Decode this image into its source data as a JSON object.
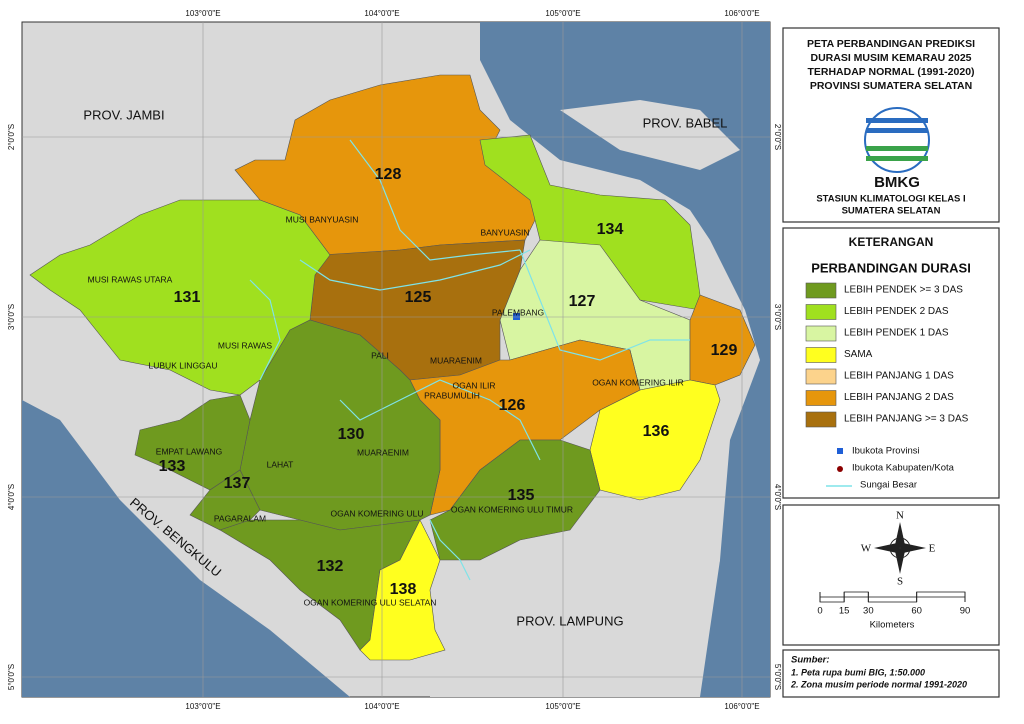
{
  "map_frame": {
    "lon_ticks": [
      "103°0'0\"E",
      "104°0'0\"E",
      "105°0'0\"E",
      "106°0'0\"E"
    ],
    "lat_ticks": [
      "2°0'0\"S",
      "3°0'0\"S",
      "4°0'0\"S",
      "5°0'0\"S"
    ]
  },
  "title": [
    "PETA PERBANDINGAN PREDIKSI",
    "DURASI MUSIM KEMARAU 2025",
    "TERHADAP NORMAL (1991-2020)",
    "PROVINSI SUMATERA SELATAN"
  ],
  "org": "BMKG",
  "station": [
    "STASIUN KLIMATOLOGI KELAS I",
    "SUMATERA SELATAN"
  ],
  "legend": {
    "title": "KETERANGAN",
    "subtitle": "PERBANDINGAN DURASI",
    "items": [
      {
        "label": "LEBIH PENDEK >= 3 DAS",
        "color": "#6f9a1f"
      },
      {
        "label": "LEBIH PENDEK 2 DAS",
        "color": "#a0e01f"
      },
      {
        "label": "LEBIH PENDEK 1 DAS",
        "color": "#d8f5a2"
      },
      {
        "label": "SAMA",
        "color": "#ffff1f"
      },
      {
        "label": "LEBIH PANJANG 1 DAS",
        "color": "#fcd38c"
      },
      {
        "label": "LEBIH PANJANG 2 DAS",
        "color": "#e6960c"
      },
      {
        "label": "LEBIH PANJANG >= 3 DAS",
        "color": "#a8700e"
      }
    ],
    "symbols": [
      "Ibukota Provinsi",
      "Ibukota Kabupaten/Kota",
      "Sungai Besar"
    ]
  },
  "regions": [
    {
      "label": "128",
      "color": "#e6960c"
    },
    {
      "label": "134",
      "color": "#a0e01f"
    },
    {
      "label": "127",
      "color": "#d8f5a2"
    },
    {
      "label": "129",
      "color": "#e6960c"
    },
    {
      "label": "136",
      "color": "#ffff1f"
    },
    {
      "label": "125",
      "color": "#a8700e"
    },
    {
      "label": "131",
      "color": "#a0e01f"
    },
    {
      "label": "126",
      "color": "#e6960c"
    },
    {
      "label": "130",
      "color": "#6f9a1f"
    },
    {
      "label": "135",
      "color": "#6f9a1f"
    },
    {
      "label": "133",
      "color": "#6f9a1f"
    },
    {
      "label": "137",
      "color": "#6f9a1f"
    },
    {
      "label": "132",
      "color": "#6f9a1f"
    },
    {
      "label": "138",
      "color": "#ffff1f"
    }
  ],
  "place_labels": [
    "MUSI BANYUASIN",
    "BANYUASIN",
    "MUSI RAWAS UTARA",
    "MUSI RAWAS",
    "LUBUK LINGGAU",
    "PALEMBANG",
    "PALI",
    "MUARAENIM",
    "PRABUMULIH",
    "OGAN ILIR",
    "OGAN KOMERING ILIR",
    "EMPAT LAWANG",
    "LAHAT",
    "MUARAENIM",
    "PAGARALAM",
    "OGAN KOMERING ULU",
    "OGAN KOMERING ULU TIMUR",
    "OGAN KOMERING ULU SELATAN"
  ],
  "province_labels": [
    "PROV. JAMBI",
    "PROV. BABEL",
    "PROV. BENGKULU",
    "PROV. LAMPUNG"
  ],
  "compass": {
    "n": "N",
    "e": "E",
    "s": "S",
    "w": "W"
  },
  "scale": {
    "ticks": [
      0,
      15,
      30,
      60,
      90
    ],
    "unit": "Kilometers"
  },
  "source": {
    "title": "Sumber:",
    "lines": [
      "1. Peta rupa bumi BIG, 1:50.000",
      "2. Zona musim periode normal 1991-2020"
    ]
  }
}
